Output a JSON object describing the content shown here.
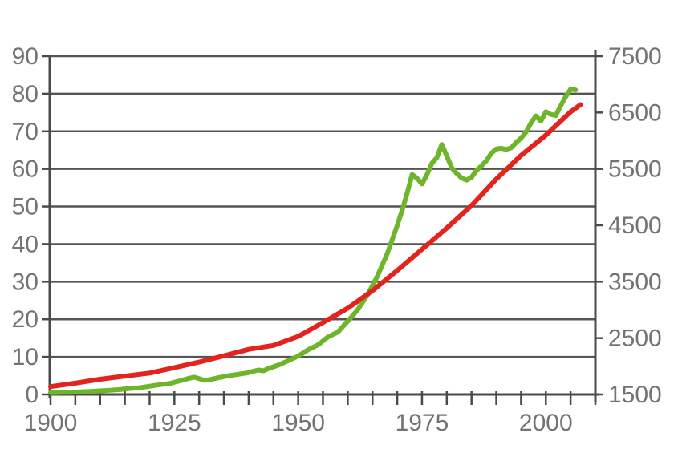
{
  "chart_data": {
    "type": "line",
    "title": "",
    "grid": true,
    "legend": "none",
    "x_axis": {
      "min_year": 1900,
      "max_tick_year": 2010,
      "minor_tick_interval_years": 5,
      "labeled_years": [
        1900,
        1925,
        1950,
        1975,
        2000
      ],
      "tick_labels": [
        "1900",
        "1925",
        "1950",
        "1975",
        "2000"
      ]
    },
    "y_axis_left": {
      "min": 0,
      "max": 90,
      "tick_interval": 10,
      "tick_values": [
        0,
        10,
        20,
        30,
        40,
        50,
        60,
        70,
        80,
        90
      ],
      "tick_labels": [
        "0",
        "10",
        "20",
        "30",
        "40",
        "50",
        "60",
        "70",
        "80",
        "90"
      ]
    },
    "y_axis_right": {
      "min": 1500,
      "max": 7500,
      "label_interval": 1000,
      "tick_values": [
        1500,
        2500,
        3500,
        4500,
        5500,
        6500,
        7500
      ],
      "tick_labels": [
        "1500",
        "2500",
        "3500",
        "4500",
        "5500",
        "6500",
        "7500"
      ]
    },
    "series": [
      {
        "name": "green-series-left-axis",
        "axis": "left",
        "color": "#6fb52b",
        "stroke_width": 6,
        "points": [
          [
            1900,
            0.5
          ],
          [
            1902,
            0.55
          ],
          [
            1904,
            0.6
          ],
          [
            1906,
            0.7
          ],
          [
            1908,
            0.8
          ],
          [
            1910,
            0.95
          ],
          [
            1912,
            1.1
          ],
          [
            1914,
            1.3
          ],
          [
            1916,
            1.6
          ],
          [
            1918,
            1.8
          ],
          [
            1920,
            2.2
          ],
          [
            1922,
            2.6
          ],
          [
            1924,
            2.9
          ],
          [
            1926,
            3.6
          ],
          [
            1928,
            4.3
          ],
          [
            1929,
            4.6
          ],
          [
            1930,
            4.2
          ],
          [
            1931,
            3.8
          ],
          [
            1932,
            3.9
          ],
          [
            1934,
            4.5
          ],
          [
            1936,
            5.0
          ],
          [
            1938,
            5.4
          ],
          [
            1940,
            5.8
          ],
          [
            1941,
            6.2
          ],
          [
            1942,
            6.5
          ],
          [
            1943,
            6.3
          ],
          [
            1944,
            6.9
          ],
          [
            1946,
            7.8
          ],
          [
            1948,
            9.0
          ],
          [
            1950,
            10.2
          ],
          [
            1952,
            11.9
          ],
          [
            1954,
            13.2
          ],
          [
            1956,
            15.3
          ],
          [
            1958,
            16.6
          ],
          [
            1960,
            19.5
          ],
          [
            1962,
            22.5
          ],
          [
            1964,
            26.5
          ],
          [
            1966,
            31.5
          ],
          [
            1968,
            37.5
          ],
          [
            1970,
            45.0
          ],
          [
            1971,
            49.0
          ],
          [
            1972,
            53.5
          ],
          [
            1973,
            58.5
          ],
          [
            1974,
            57.5
          ],
          [
            1975,
            56.0
          ],
          [
            1976,
            58.5
          ],
          [
            1977,
            61.5
          ],
          [
            1978,
            63.0
          ],
          [
            1979,
            66.5
          ],
          [
            1980,
            63.5
          ],
          [
            1981,
            60.3
          ],
          [
            1982,
            58.8
          ],
          [
            1983,
            57.6
          ],
          [
            1984,
            57.0
          ],
          [
            1985,
            57.8
          ],
          [
            1986,
            59.6
          ],
          [
            1987,
            60.8
          ],
          [
            1988,
            62.2
          ],
          [
            1989,
            64.2
          ],
          [
            1990,
            65.3
          ],
          [
            1991,
            65.5
          ],
          [
            1992,
            65.2
          ],
          [
            1993,
            65.6
          ],
          [
            1994,
            67.0
          ],
          [
            1995,
            68.2
          ],
          [
            1996,
            69.8
          ],
          [
            1997,
            72.2
          ],
          [
            1998,
            74.1
          ],
          [
            1999,
            72.7
          ],
          [
            2000,
            75.2
          ],
          [
            2001,
            74.5
          ],
          [
            2002,
            74.2
          ],
          [
            2003,
            76.8
          ],
          [
            2004,
            79.2
          ],
          [
            2005,
            81.2
          ],
          [
            2006,
            81.0
          ]
        ]
      },
      {
        "name": "red-series-right-axis",
        "axis": "right",
        "color": "#e2241e",
        "stroke_width": 6,
        "points": [
          [
            1900,
            1640
          ],
          [
            1905,
            1700
          ],
          [
            1910,
            1770
          ],
          [
            1915,
            1825
          ],
          [
            1920,
            1880
          ],
          [
            1925,
            1975
          ],
          [
            1930,
            2075
          ],
          [
            1935,
            2185
          ],
          [
            1940,
            2300
          ],
          [
            1945,
            2370
          ],
          [
            1950,
            2530
          ],
          [
            1955,
            2775
          ],
          [
            1960,
            3030
          ],
          [
            1965,
            3340
          ],
          [
            1970,
            3700
          ],
          [
            1975,
            4075
          ],
          [
            1980,
            4450
          ],
          [
            1985,
            4850
          ],
          [
            1990,
            5320
          ],
          [
            1995,
            5740
          ],
          [
            2000,
            6100
          ],
          [
            2005,
            6510
          ],
          [
            2007,
            6640
          ]
        ]
      }
    ],
    "style": {
      "grid_color": "#555555",
      "axis_color": "#4a4a4a",
      "label_color": "#737373",
      "background": "#ffffff",
      "grid_stroke_width": 2.5,
      "axis_stroke_width": 3,
      "label_font_size": 30
    }
  }
}
